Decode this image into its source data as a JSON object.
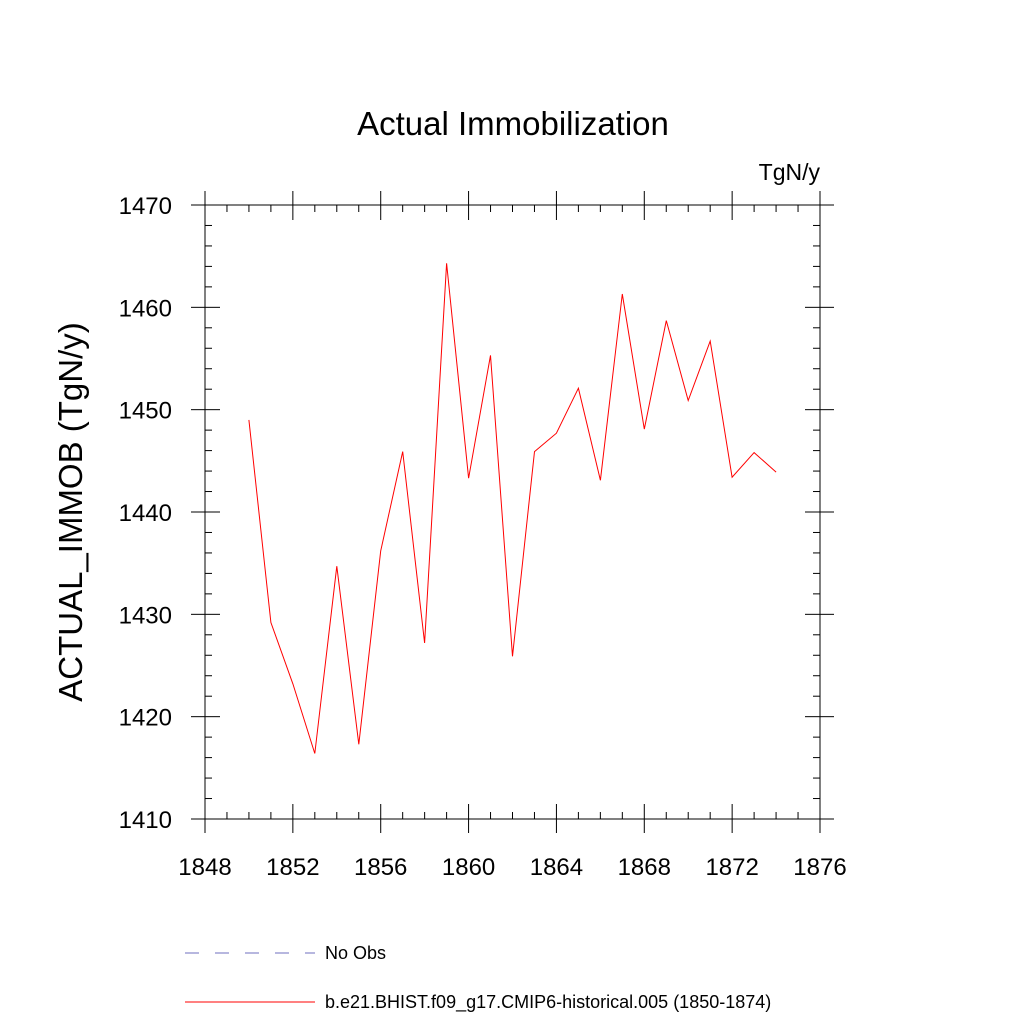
{
  "chart_data": {
    "type": "line",
    "title": "Actual Immobilization",
    "units_label": "TgN/y",
    "ylabel": "ACTUAL_IMMOB  (TgN/y)",
    "xlabel": "",
    "xlim": [
      1848,
      1876
    ],
    "ylim": [
      1410,
      1470
    ],
    "x_ticks": [
      1848,
      1852,
      1856,
      1860,
      1864,
      1868,
      1872,
      1876
    ],
    "y_ticks": [
      1410,
      1420,
      1430,
      1440,
      1450,
      1460,
      1470
    ],
    "grid": false,
    "legend_position": "bottom",
    "series": [
      {
        "name": "b.e21.BHIST.f09_g17.CMIP6-historical.005 (1850-1874)",
        "color": "#ff0000",
        "style": "solid",
        "x": [
          1850,
          1851,
          1852,
          1853,
          1854,
          1855,
          1856,
          1857,
          1858,
          1859,
          1860,
          1861,
          1862,
          1863,
          1864,
          1865,
          1866,
          1867,
          1868,
          1869,
          1870,
          1871,
          1872,
          1873,
          1874
        ],
        "y": [
          1449.0,
          1429.2,
          1423.2,
          1416.4,
          1434.7,
          1417.3,
          1436.2,
          1445.9,
          1427.2,
          1464.3,
          1443.3,
          1455.3,
          1425.9,
          1445.9,
          1447.7,
          1452.1,
          1443.1,
          1461.3,
          1448.1,
          1458.7,
          1450.9,
          1456.7,
          1443.4,
          1445.8,
          1443.9
        ]
      }
    ],
    "legend": [
      {
        "label": "No Obs",
        "color": "#6f6fbf",
        "style": "dashed"
      },
      {
        "label": "b.e21.BHIST.f09_g17.CMIP6-historical.005 (1850-1874)",
        "color": "#ff0000",
        "style": "solid"
      }
    ]
  }
}
